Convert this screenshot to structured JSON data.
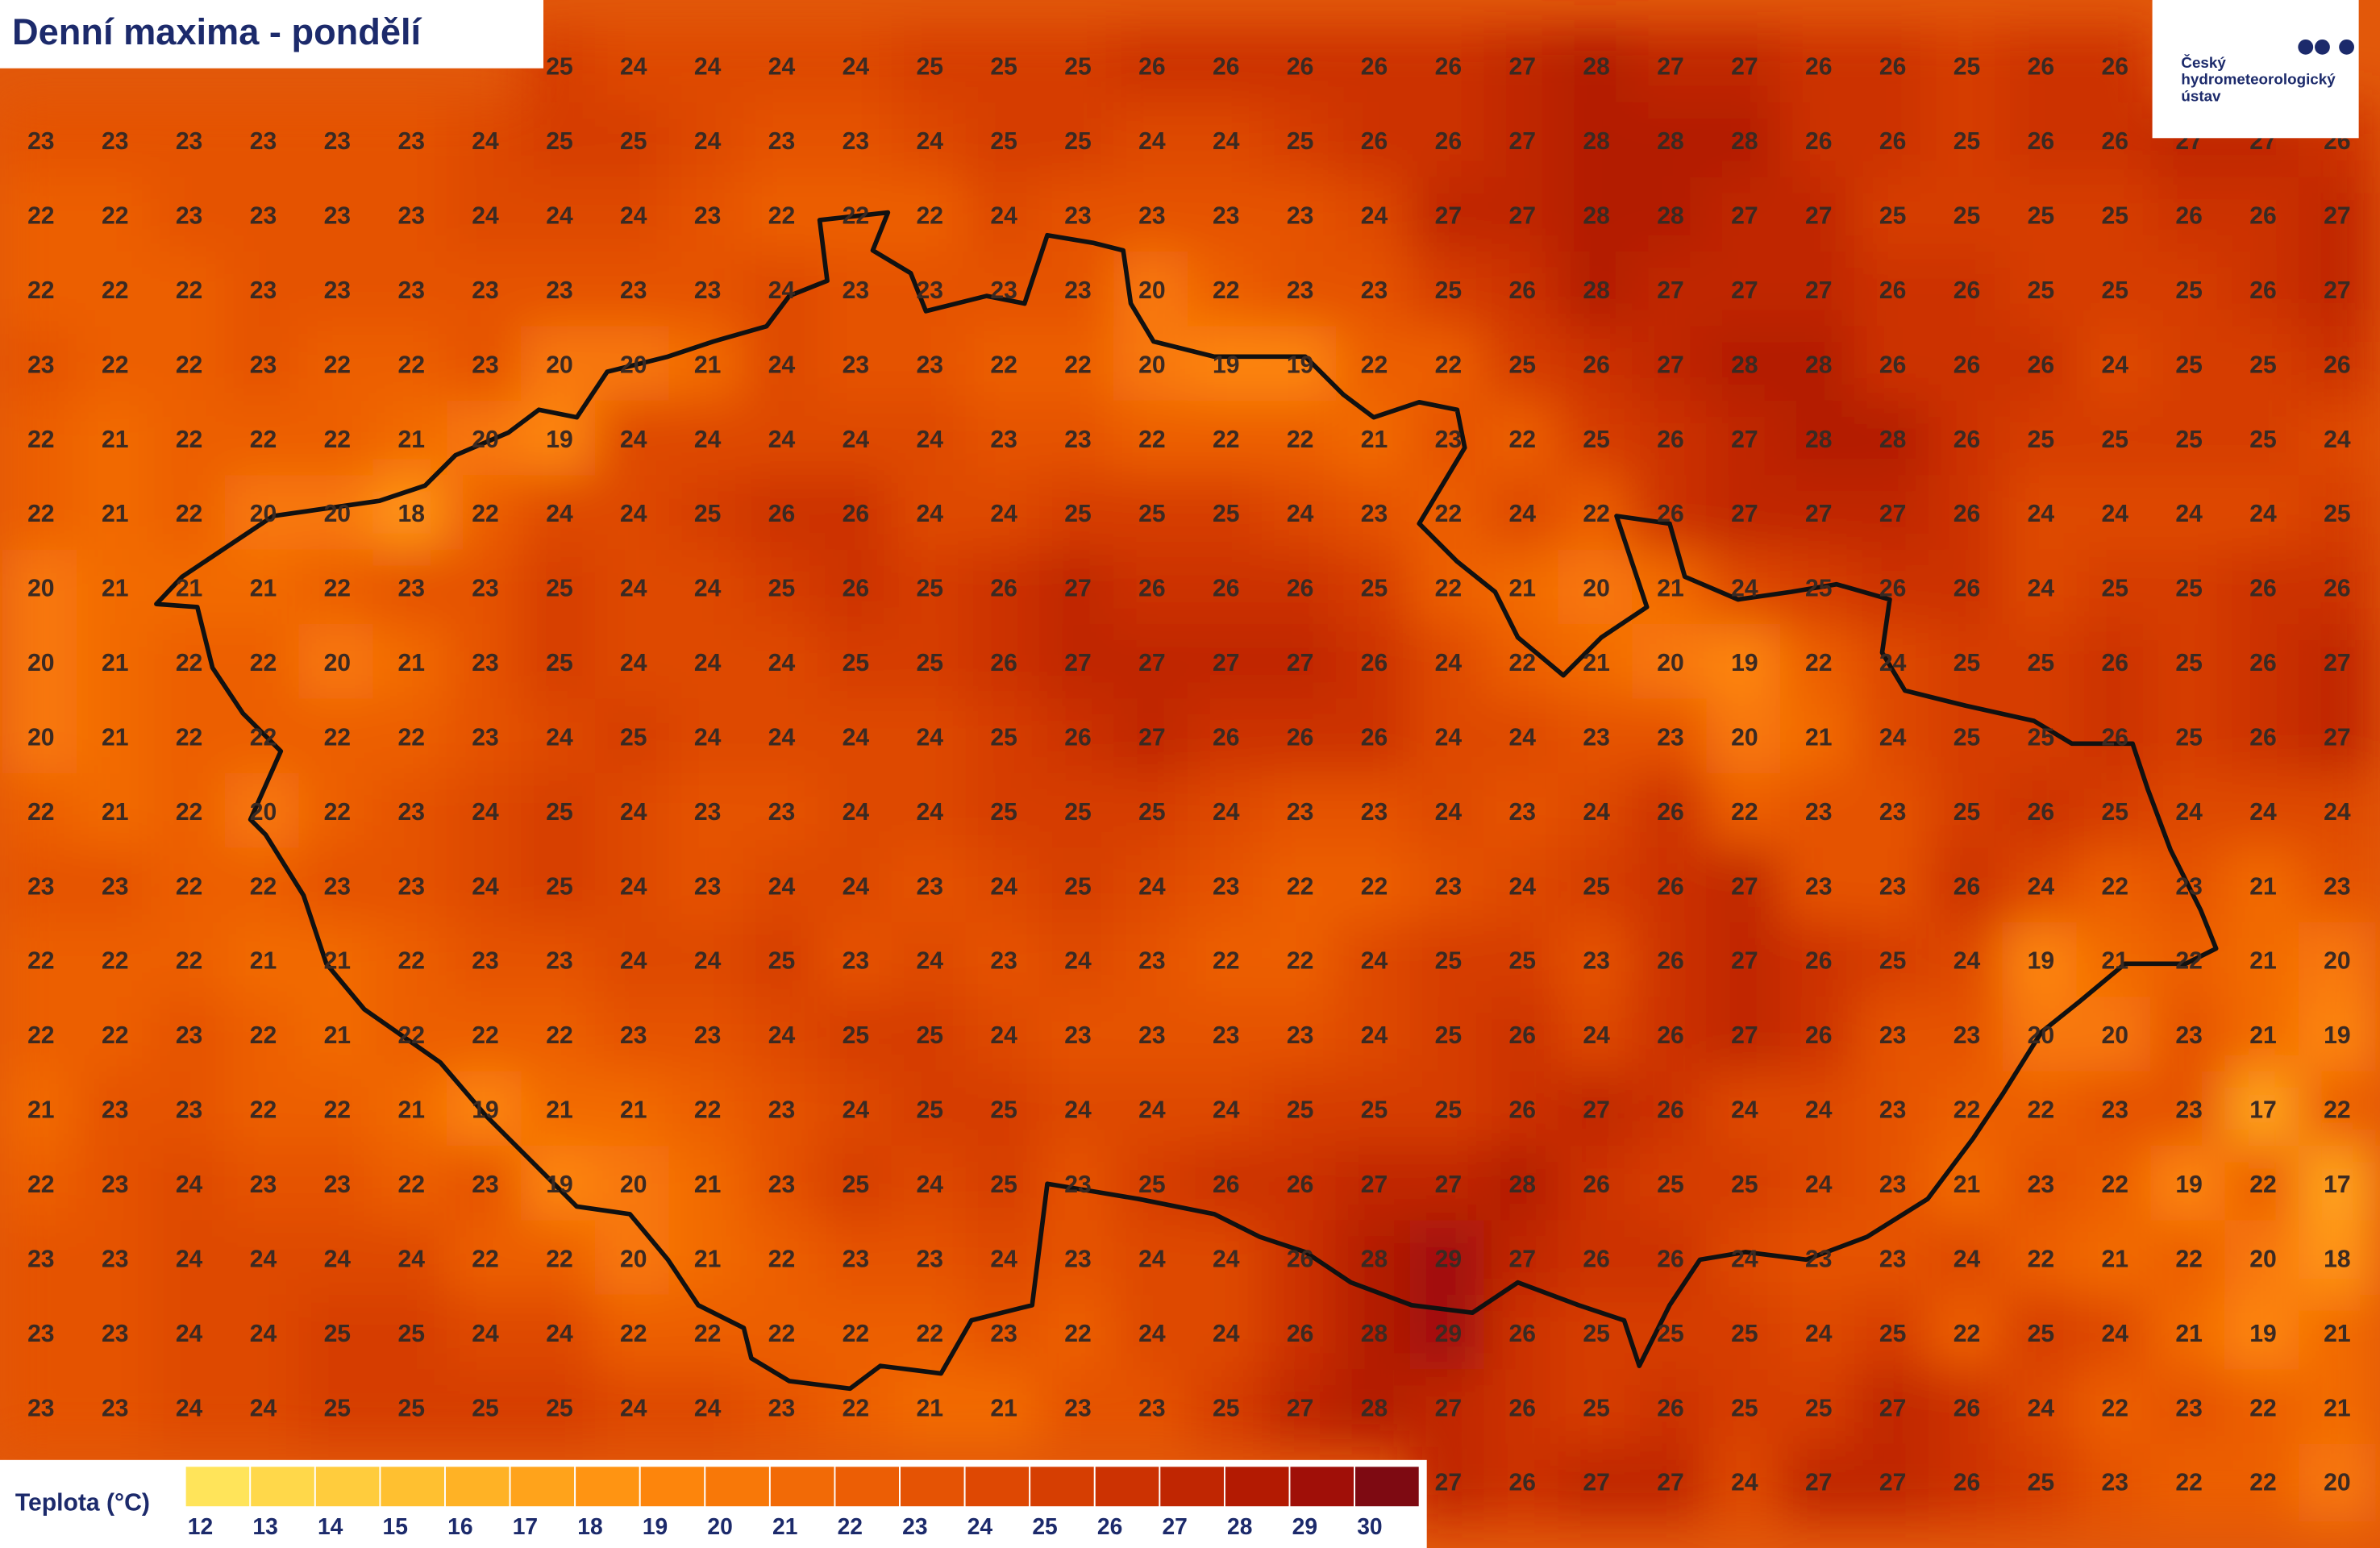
{
  "header": {
    "title": "Denní maxima - pondělí"
  },
  "logo": {
    "lines": [
      "Český",
      "hydrometeorologický",
      "ústav"
    ]
  },
  "map": {
    "grid": [
      [
        null,
        null,
        null,
        null,
        null,
        null,
        null,
        25,
        24,
        24,
        24,
        24,
        25,
        25,
        25,
        26,
        26,
        26,
        26,
        26,
        27,
        28,
        27,
        27,
        26,
        26,
        25,
        26,
        26,
        null,
        null,
        null
      ],
      [
        23,
        23,
        23,
        23,
        23,
        23,
        24,
        25,
        25,
        24,
        23,
        23,
        24,
        25,
        25,
        24,
        24,
        25,
        26,
        26,
        27,
        28,
        28,
        28,
        26,
        26,
        25,
        26,
        26,
        27,
        27,
        26
      ],
      [
        22,
        22,
        23,
        23,
        23,
        23,
        24,
        24,
        24,
        23,
        22,
        22,
        22,
        24,
        23,
        23,
        23,
        23,
        24,
        27,
        27,
        28,
        28,
        27,
        27,
        25,
        25,
        25,
        25,
        26,
        26,
        27
      ],
      [
        22,
        22,
        22,
        23,
        23,
        23,
        23,
        23,
        23,
        23,
        24,
        23,
        23,
        23,
        23,
        20,
        22,
        23,
        23,
        25,
        26,
        28,
        27,
        27,
        27,
        26,
        26,
        25,
        25,
        25,
        26,
        27
      ],
      [
        23,
        22,
        22,
        23,
        22,
        22,
        23,
        20,
        20,
        21,
        24,
        23,
        23,
        22,
        22,
        20,
        19,
        19,
        22,
        22,
        25,
        26,
        27,
        28,
        28,
        26,
        26,
        26,
        24,
        25,
        25,
        26
      ],
      [
        22,
        21,
        22,
        22,
        22,
        21,
        20,
        19,
        24,
        24,
        24,
        24,
        24,
        23,
        23,
        22,
        22,
        22,
        21,
        23,
        22,
        25,
        26,
        27,
        28,
        28,
        26,
        25,
        25,
        25,
        25,
        24
      ],
      [
        22,
        21,
        22,
        20,
        20,
        18,
        22,
        24,
        24,
        25,
        26,
        26,
        24,
        24,
        25,
        25,
        25,
        24,
        23,
        22,
        24,
        22,
        26,
        27,
        27,
        27,
        26,
        24,
        24,
        24,
        24,
        25
      ],
      [
        20,
        21,
        21,
        21,
        22,
        23,
        23,
        25,
        24,
        24,
        25,
        26,
        25,
        26,
        27,
        26,
        26,
        26,
        25,
        22,
        21,
        20,
        21,
        24,
        25,
        26,
        26,
        24,
        25,
        25,
        26,
        26
      ],
      [
        20,
        21,
        22,
        22,
        20,
        21,
        23,
        25,
        24,
        24,
        24,
        25,
        25,
        26,
        27,
        27,
        27,
        27,
        26,
        24,
        22,
        21,
        20,
        19,
        22,
        24,
        25,
        25,
        26,
        25,
        26,
        27
      ],
      [
        20,
        21,
        22,
        22,
        22,
        22,
        23,
        24,
        25,
        24,
        24,
        24,
        24,
        25,
        26,
        27,
        26,
        26,
        26,
        24,
        24,
        23,
        23,
        20,
        21,
        24,
        25,
        25,
        26,
        25,
        26,
        27
      ],
      [
        22,
        21,
        22,
        20,
        22,
        23,
        24,
        25,
        24,
        23,
        23,
        24,
        24,
        25,
        25,
        25,
        24,
        23,
        23,
        24,
        23,
        24,
        26,
        22,
        23,
        23,
        25,
        26,
        25,
        24,
        24,
        24
      ],
      [
        23,
        23,
        22,
        22,
        23,
        23,
        24,
        25,
        24,
        23,
        24,
        24,
        23,
        24,
        25,
        24,
        23,
        22,
        22,
        23,
        24,
        25,
        26,
        27,
        23,
        23,
        26,
        24,
        22,
        23,
        21,
        23
      ],
      [
        22,
        22,
        22,
        21,
        21,
        22,
        23,
        23,
        24,
        24,
        25,
        23,
        24,
        23,
        24,
        23,
        22,
        22,
        24,
        25,
        25,
        23,
        26,
        27,
        26,
        25,
        24,
        19,
        21,
        22,
        21,
        20
      ],
      [
        22,
        22,
        23,
        22,
        21,
        22,
        22,
        22,
        23,
        23,
        24,
        25,
        25,
        24,
        23,
        23,
        23,
        23,
        24,
        25,
        26,
        24,
        26,
        27,
        26,
        23,
        23,
        20,
        20,
        23,
        21,
        19
      ],
      [
        21,
        23,
        23,
        22,
        22,
        21,
        19,
        21,
        21,
        22,
        23,
        24,
        25,
        25,
        24,
        24,
        24,
        25,
        25,
        25,
        26,
        27,
        26,
        24,
        24,
        23,
        22,
        22,
        23,
        23,
        17,
        22
      ],
      [
        22,
        23,
        24,
        23,
        23,
        22,
        23,
        19,
        20,
        21,
        23,
        25,
        24,
        25,
        23,
        25,
        26,
        26,
        27,
        27,
        28,
        26,
        25,
        25,
        24,
        23,
        21,
        23,
        22,
        19,
        22,
        17
      ],
      [
        23,
        23,
        24,
        24,
        24,
        24,
        22,
        22,
        20,
        21,
        22,
        23,
        23,
        24,
        23,
        24,
        24,
        26,
        28,
        29,
        27,
        26,
        26,
        24,
        23,
        23,
        24,
        22,
        21,
        22,
        20,
        18
      ],
      [
        23,
        23,
        24,
        24,
        25,
        25,
        24,
        24,
        22,
        22,
        22,
        22,
        22,
        23,
        22,
        24,
        24,
        26,
        28,
        29,
        26,
        25,
        25,
        25,
        24,
        25,
        22,
        25,
        24,
        21,
        19,
        21
      ],
      [
        23,
        23,
        24,
        24,
        25,
        25,
        25,
        25,
        24,
        24,
        23,
        22,
        21,
        21,
        23,
        23,
        25,
        27,
        28,
        27,
        26,
        25,
        26,
        25,
        25,
        27,
        26,
        24,
        22,
        23,
        22,
        21
      ],
      [
        null,
        null,
        null,
        null,
        null,
        null,
        null,
        null,
        null,
        null,
        null,
        null,
        null,
        null,
        null,
        null,
        null,
        null,
        null,
        27,
        26,
        27,
        27,
        24,
        27,
        27,
        26,
        25,
        23,
        22,
        22,
        20
      ]
    ]
  },
  "legend": {
    "title": "Teplota (°C)",
    "items": [
      {
        "value": 12,
        "color": "#ffe45a"
      },
      {
        "value": 13,
        "color": "#ffd84a"
      },
      {
        "value": 14,
        "color": "#ffcc3d"
      },
      {
        "value": 15,
        "color": "#ffc030"
      },
      {
        "value": 16,
        "color": "#ffb225"
      },
      {
        "value": 17,
        "color": "#ffa31b"
      },
      {
        "value": 18,
        "color": "#ff9412"
      },
      {
        "value": 19,
        "color": "#fd850c"
      },
      {
        "value": 20,
        "color": "#f87808"
      },
      {
        "value": 21,
        "color": "#f26a06"
      },
      {
        "value": 22,
        "color": "#ec5e05"
      },
      {
        "value": 23,
        "color": "#e55304"
      },
      {
        "value": 24,
        "color": "#de4803"
      },
      {
        "value": 25,
        "color": "#d63e02"
      },
      {
        "value": 26,
        "color": "#cc3202"
      },
      {
        "value": 27,
        "color": "#c02602"
      },
      {
        "value": 28,
        "color": "#b31a02"
      },
      {
        "value": 29,
        "color": "#a00f08"
      },
      {
        "value": 30,
        "color": "#7e0a12"
      }
    ]
  }
}
